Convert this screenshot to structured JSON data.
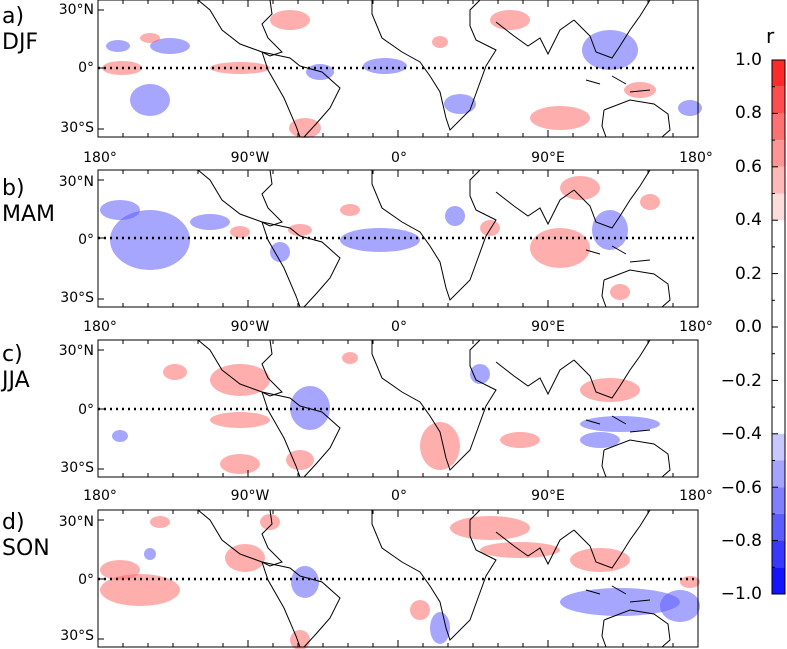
{
  "panels": [
    {
      "letter": "a)",
      "season": "DJF"
    },
    {
      "letter": "b)",
      "season": "MAM"
    },
    {
      "letter": "c)",
      "season": "JJA"
    },
    {
      "letter": "d)",
      "season": "SON"
    }
  ],
  "lat_labels": [
    "30°N",
    "0°",
    "30°S"
  ],
  "lon_labels": [
    "180°",
    "90°W",
    "0°",
    "90°E",
    "180°"
  ],
  "colorbar": {
    "title": "r",
    "ticks": [
      "1.0",
      "0.8",
      "0.6",
      "0.4",
      "0.2",
      "0.0",
      "−0.2",
      "−0.4",
      "−0.6",
      "−0.8",
      "−1.0"
    ],
    "positive_colors": [
      "#ff2b2b",
      "#ff4d4d",
      "#ff7070",
      "#ff9494",
      "#ffb8b8",
      "#ffdcdc"
    ],
    "negative_colors": [
      "#c8c8ff",
      "#a4a4ff",
      "#8080ff",
      "#5c5cff",
      "#3838ff",
      "#1414ff"
    ]
  },
  "colors": {
    "positive": "#ff6b6b",
    "negative": "#5d5dff",
    "coast": "#000000"
  }
}
